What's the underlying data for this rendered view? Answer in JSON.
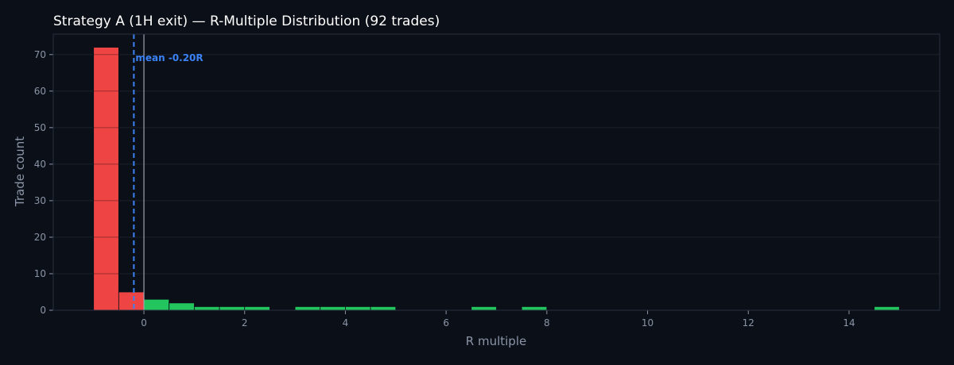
{
  "chart_data": {
    "type": "bar",
    "title": "Strategy A (1H exit) — R-Multiple Distribution (92 trades)",
    "xlabel": "R multiple",
    "ylabel": "Trade count",
    "xlim": [
      -1.8,
      15.8
    ],
    "ylim": [
      0,
      75.6
    ],
    "xticks": [
      0,
      2,
      4,
      6,
      8,
      10,
      12,
      14
    ],
    "yticks": [
      0,
      10,
      20,
      30,
      40,
      50,
      60,
      70
    ],
    "grid": true,
    "bin_width": 0.5,
    "bins": [
      {
        "x0": -1.0,
        "x1": -0.5,
        "count": 72
      },
      {
        "x0": -0.5,
        "x1": 0.0,
        "count": 5
      },
      {
        "x0": 0.0,
        "x1": 0.5,
        "count": 3
      },
      {
        "x0": 0.5,
        "x1": 1.0,
        "count": 2
      },
      {
        "x0": 1.0,
        "x1": 1.5,
        "count": 1
      },
      {
        "x0": 1.5,
        "x1": 2.0,
        "count": 1
      },
      {
        "x0": 2.0,
        "x1": 2.5,
        "count": 1
      },
      {
        "x0": 3.0,
        "x1": 3.5,
        "count": 1
      },
      {
        "x0": 3.5,
        "x1": 4.0,
        "count": 1
      },
      {
        "x0": 4.0,
        "x1": 4.5,
        "count": 1
      },
      {
        "x0": 4.5,
        "x1": 5.0,
        "count": 1
      },
      {
        "x0": 6.5,
        "x1": 7.0,
        "count": 1
      },
      {
        "x0": 7.5,
        "x1": 8.0,
        "count": 1
      },
      {
        "x0": 14.5,
        "x1": 15.0,
        "count": 1
      }
    ],
    "mean_r": -0.2,
    "mean_label": "mean -0.20R",
    "zero_line_x": 0,
    "colors": {
      "loss": "#ef4444",
      "win": "#22c55e",
      "mean": "#3b82f6",
      "zero": "#9ca3af",
      "background": "#0b0f17",
      "grid": "#273040",
      "axis_text": "#8b95a7",
      "title": "#ffffff"
    }
  }
}
